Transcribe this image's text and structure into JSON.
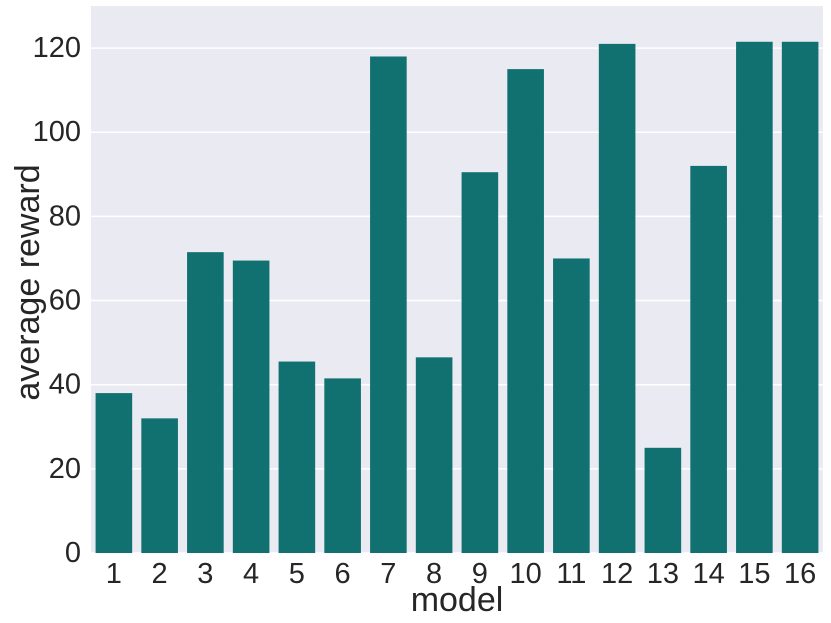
{
  "chart_data": {
    "type": "bar",
    "title": "",
    "xlabel": "model",
    "ylabel": "average reward",
    "categories": [
      "1",
      "2",
      "3",
      "4",
      "5",
      "6",
      "7",
      "8",
      "9",
      "10",
      "11",
      "12",
      "13",
      "14",
      "15",
      "16"
    ],
    "values": [
      38,
      32,
      71.5,
      69.5,
      45.5,
      41.5,
      118,
      46.5,
      90.5,
      115,
      70,
      121,
      25,
      92,
      121.5,
      121.5
    ],
    "ylim": [
      0,
      130
    ],
    "yticks": [
      "0",
      "20",
      "40",
      "60",
      "80",
      "100",
      "120"
    ],
    "grid": true,
    "colors": {
      "bar": "#117070",
      "plot_background": "#eaeaf2",
      "grid": "#ffffff",
      "text": "#262626"
    }
  }
}
